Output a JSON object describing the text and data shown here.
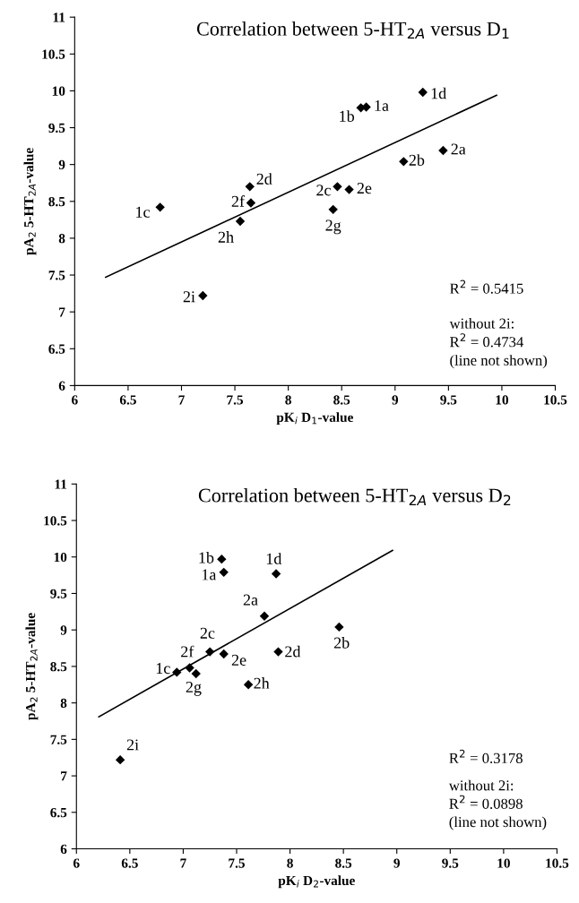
{
  "chart_data": [
    {
      "type": "scatter",
      "title": "Correlation between 5-HT$_{2A}$ versus D$_{1}$",
      "xlabel": "pK$_{i}$ D$_{1}$-value",
      "ylabel": "pA$_{2}$ 5-HT$_{2A}$-value",
      "xlim": [
        6,
        10.5
      ],
      "xticks": [
        6,
        6.5,
        7,
        7.5,
        8,
        8.5,
        9,
        9.5,
        10,
        10.5
      ],
      "ylim": [
        6,
        11
      ],
      "yticks": [
        6,
        6.5,
        7,
        7.5,
        8,
        8.5,
        9,
        9.5,
        10,
        10.5,
        11
      ],
      "grid": false,
      "legend": false,
      "series": [
        {
          "marker": "diamond",
          "color": "#000000",
          "x": [
            8.73,
            8.68,
            6.8,
            9.26,
            9.45,
            9.08,
            8.46,
            7.64,
            8.57,
            7.65,
            8.42,
            7.55,
            7.2
          ],
          "values": [
            9.78,
            9.77,
            8.42,
            9.98,
            9.19,
            9.04,
            8.7,
            8.7,
            8.66,
            8.48,
            8.39,
            8.23,
            7.22
          ]
        },
        {
          "type": "line",
          "marker": "none",
          "color": "#000000",
          "x": [
            6.29,
            9.95
          ],
          "values": [
            7.47,
            9.94
          ]
        }
      ],
      "annotations": [
        {
          "text": "1a",
          "x": 8.73,
          "y": 9.78
        },
        {
          "text": "1b",
          "x": 8.68,
          "y": 9.77
        },
        {
          "text": "1c",
          "x": 6.8,
          "y": 8.42
        },
        {
          "text": "1d",
          "x": 9.26,
          "y": 9.98
        },
        {
          "text": "2a",
          "x": 9.45,
          "y": 9.19
        },
        {
          "text": "2b",
          "x": 9.08,
          "y": 9.04
        },
        {
          "text": "2c",
          "x": 8.46,
          "y": 8.7
        },
        {
          "text": "2d",
          "x": 7.64,
          "y": 8.7
        },
        {
          "text": "2e",
          "x": 8.57,
          "y": 8.66
        },
        {
          "text": "2f",
          "x": 7.65,
          "y": 8.48
        },
        {
          "text": "2g",
          "x": 8.42,
          "y": 8.39
        },
        {
          "text": "2h",
          "x": 7.55,
          "y": 8.23
        },
        {
          "text": "2i",
          "x": 7.2,
          "y": 7.22
        },
        "R$^{2}$ = 0.5415",
        "without 2i:",
        "R$^{2}$ = 0.4734",
        "(line not shown)"
      ]
    },
    {
      "type": "scatter",
      "title": "Correlation between 5-HT$_{2A}$ versus D$_{2}$",
      "xlabel": "pK$_{i}$ D$_{2}$-value",
      "ylabel": "pA$_{2}$ 5-HT$_{2A}$-value",
      "xlim": [
        6,
        10.5
      ],
      "xticks": [
        6,
        6.5,
        7,
        7.5,
        8,
        8.5,
        9,
        9.5,
        10,
        10.5
      ],
      "ylim": [
        6,
        11
      ],
      "yticks": [
        6,
        6.5,
        7,
        7.5,
        8,
        8.5,
        9,
        9.5,
        10,
        10.5,
        11
      ],
      "grid": false,
      "legend": false,
      "series": [
        {
          "marker": "diamond",
          "color": "#000000",
          "x": [
            7.38,
            7.36,
            6.94,
            7.87,
            7.76,
            8.46,
            7.25,
            7.89,
            7.38,
            7.06,
            7.12,
            7.61,
            6.41
          ],
          "values": [
            9.79,
            9.97,
            8.42,
            9.77,
            9.19,
            9.04,
            8.7,
            8.7,
            8.67,
            8.48,
            8.4,
            8.25,
            7.22
          ]
        },
        {
          "type": "line",
          "marker": "none",
          "color": "#000000",
          "x": [
            6.21,
            8.96
          ],
          "values": [
            7.81,
            10.09
          ]
        }
      ],
      "annotations": [
        {
          "text": "1a",
          "x": 7.38,
          "y": 9.79
        },
        {
          "text": "1b",
          "x": 7.36,
          "y": 9.97
        },
        {
          "text": "1c",
          "x": 6.94,
          "y": 8.42
        },
        {
          "text": "1d",
          "x": 7.87,
          "y": 9.77
        },
        {
          "text": "2a",
          "x": 7.76,
          "y": 9.19
        },
        {
          "text": "2b",
          "x": 8.46,
          "y": 9.04
        },
        {
          "text": "2c",
          "x": 7.25,
          "y": 8.7
        },
        {
          "text": "2d",
          "x": 7.89,
          "y": 8.7
        },
        {
          "text": "2e",
          "x": 7.38,
          "y": 8.67
        },
        {
          "text": "2f",
          "x": 7.06,
          "y": 8.48
        },
        {
          "text": "2g",
          "x": 7.12,
          "y": 8.4
        },
        {
          "text": "2h",
          "x": 7.61,
          "y": 8.25
        },
        {
          "text": "2i",
          "x": 6.41,
          "y": 7.22
        },
        "R$^{2}$ = 0.3178",
        "without 2i:",
        "R$^{2}$ = 0.0898",
        "(line not shown)"
      ]
    }
  ]
}
